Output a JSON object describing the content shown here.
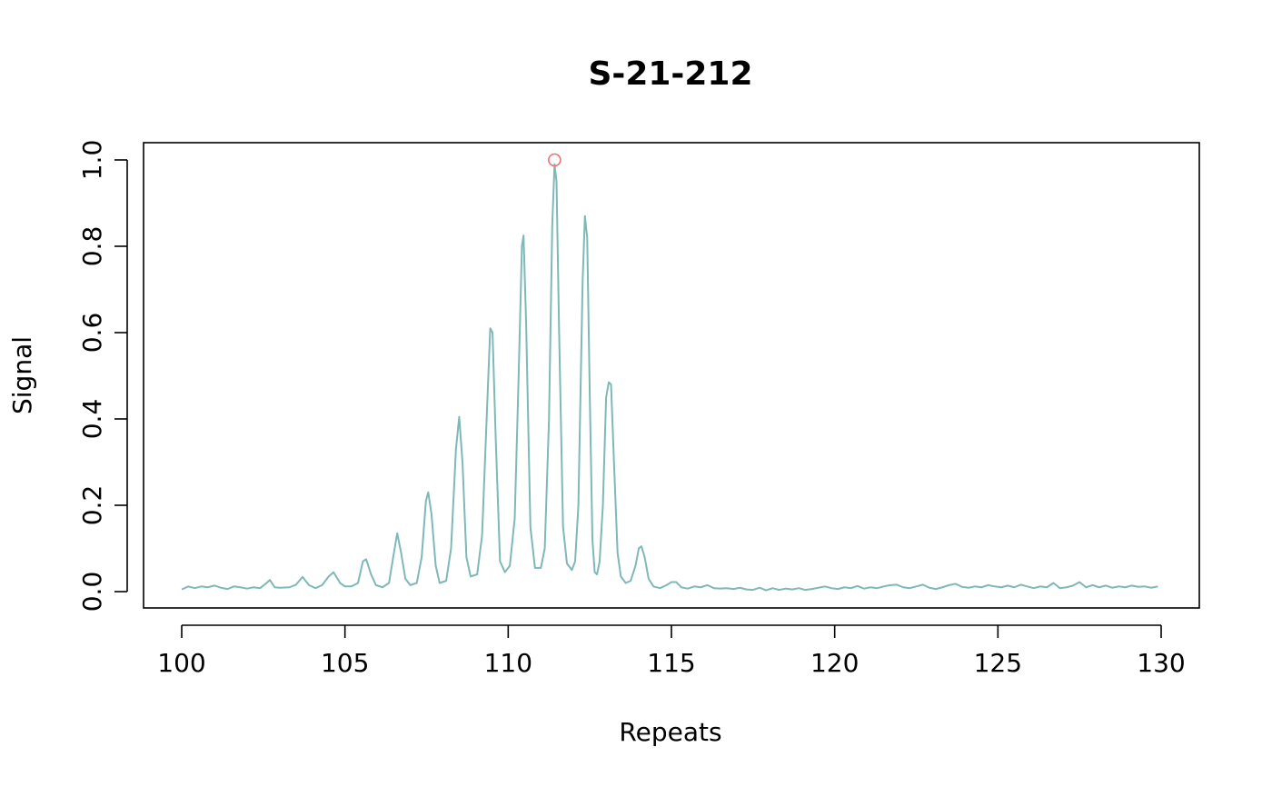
{
  "chart_data": {
    "type": "line",
    "title": "S-21-212",
    "xlabel": "Repeats",
    "ylabel": "Signal",
    "xlim": [
      100,
      130
    ],
    "ylim": [
      0,
      1.0
    ],
    "x_ticks": [
      "100",
      "105",
      "110",
      "115",
      "120",
      "125",
      "130"
    ],
    "y_ticks": [
      "0.0",
      "0.2",
      "0.4",
      "0.6",
      "0.8",
      "1.0"
    ],
    "grid": false,
    "legend": "none",
    "series_color": "#7fb8b8",
    "marker_color": "#f07070",
    "peaks": [
      {
        "x": 100.6,
        "y": 0.012
      },
      {
        "x": 101.6,
        "y": 0.012
      },
      {
        "x": 102.7,
        "y": 0.027
      },
      {
        "x": 103.7,
        "y": 0.034
      },
      {
        "x": 104.65,
        "y": 0.045
      },
      {
        "x": 105.65,
        "y": 0.075
      },
      {
        "x": 106.6,
        "y": 0.135
      },
      {
        "x": 107.55,
        "y": 0.23
      },
      {
        "x": 108.5,
        "y": 0.405
      },
      {
        "x": 109.5,
        "y": 0.61
      },
      {
        "x": 110.45,
        "y": 0.825
      },
      {
        "x": 111.42,
        "y": 0.99
      },
      {
        "x": 112.38,
        "y": 0.88
      },
      {
        "x": 113.1,
        "y": 0.485
      },
      {
        "x": 114.05,
        "y": 0.105
      }
    ],
    "highlight_point": {
      "x": 111.42,
      "y": 1.0
    },
    "points": [
      [
        100.0,
        0.005
      ],
      [
        100.2,
        0.012
      ],
      [
        100.4,
        0.008
      ],
      [
        100.6,
        0.012
      ],
      [
        100.8,
        0.01
      ],
      [
        101.0,
        0.014
      ],
      [
        101.2,
        0.009
      ],
      [
        101.4,
        0.006
      ],
      [
        101.6,
        0.012
      ],
      [
        101.8,
        0.01
      ],
      [
        102.0,
        0.007
      ],
      [
        102.2,
        0.01
      ],
      [
        102.4,
        0.008
      ],
      [
        102.6,
        0.02
      ],
      [
        102.7,
        0.027
      ],
      [
        102.85,
        0.01
      ],
      [
        103.0,
        0.009
      ],
      [
        103.3,
        0.01
      ],
      [
        103.5,
        0.016
      ],
      [
        103.7,
        0.034
      ],
      [
        103.9,
        0.015
      ],
      [
        104.1,
        0.008
      ],
      [
        104.3,
        0.015
      ],
      [
        104.5,
        0.035
      ],
      [
        104.65,
        0.045
      ],
      [
        104.85,
        0.02
      ],
      [
        105.0,
        0.012
      ],
      [
        105.2,
        0.012
      ],
      [
        105.4,
        0.02
      ],
      [
        105.55,
        0.07
      ],
      [
        105.65,
        0.075
      ],
      [
        105.8,
        0.04
      ],
      [
        105.95,
        0.015
      ],
      [
        106.15,
        0.01
      ],
      [
        106.35,
        0.02
      ],
      [
        106.5,
        0.09
      ],
      [
        106.6,
        0.135
      ],
      [
        106.72,
        0.09
      ],
      [
        106.85,
        0.03
      ],
      [
        107.0,
        0.015
      ],
      [
        107.2,
        0.02
      ],
      [
        107.35,
        0.08
      ],
      [
        107.48,
        0.21
      ],
      [
        107.55,
        0.23
      ],
      [
        107.65,
        0.18
      ],
      [
        107.78,
        0.06
      ],
      [
        107.9,
        0.02
      ],
      [
        108.1,
        0.025
      ],
      [
        108.25,
        0.1
      ],
      [
        108.4,
        0.33
      ],
      [
        108.5,
        0.405
      ],
      [
        108.6,
        0.3
      ],
      [
        108.72,
        0.08
      ],
      [
        108.85,
        0.035
      ],
      [
        109.05,
        0.04
      ],
      [
        109.2,
        0.13
      ],
      [
        109.35,
        0.42
      ],
      [
        109.45,
        0.61
      ],
      [
        109.52,
        0.6
      ],
      [
        109.62,
        0.35
      ],
      [
        109.75,
        0.07
      ],
      [
        109.9,
        0.045
      ],
      [
        110.05,
        0.06
      ],
      [
        110.2,
        0.17
      ],
      [
        110.32,
        0.5
      ],
      [
        110.42,
        0.8
      ],
      [
        110.47,
        0.825
      ],
      [
        110.55,
        0.62
      ],
      [
        110.68,
        0.15
      ],
      [
        110.82,
        0.055
      ],
      [
        111.0,
        0.055
      ],
      [
        111.12,
        0.1
      ],
      [
        111.25,
        0.4
      ],
      [
        111.35,
        0.85
      ],
      [
        111.42,
        0.99
      ],
      [
        111.48,
        0.95
      ],
      [
        111.56,
        0.6
      ],
      [
        111.68,
        0.15
      ],
      [
        111.8,
        0.065
      ],
      [
        111.95,
        0.05
      ],
      [
        112.05,
        0.07
      ],
      [
        112.15,
        0.2
      ],
      [
        112.28,
        0.72
      ],
      [
        112.35,
        0.87
      ],
      [
        112.42,
        0.82
      ],
      [
        112.5,
        0.45
      ],
      [
        112.58,
        0.12
      ],
      [
        112.65,
        0.045
      ],
      [
        112.72,
        0.04
      ],
      [
        112.8,
        0.07
      ],
      [
        112.9,
        0.2
      ],
      [
        113.0,
        0.45
      ],
      [
        113.08,
        0.485
      ],
      [
        113.15,
        0.48
      ],
      [
        113.25,
        0.28
      ],
      [
        113.35,
        0.09
      ],
      [
        113.45,
        0.035
      ],
      [
        113.6,
        0.02
      ],
      [
        113.75,
        0.025
      ],
      [
        113.9,
        0.06
      ],
      [
        114.0,
        0.1
      ],
      [
        114.08,
        0.105
      ],
      [
        114.18,
        0.08
      ],
      [
        114.3,
        0.03
      ],
      [
        114.45,
        0.012
      ],
      [
        114.65,
        0.008
      ],
      [
        114.85,
        0.015
      ],
      [
        115.0,
        0.022
      ],
      [
        115.15,
        0.022
      ],
      [
        115.3,
        0.01
      ],
      [
        115.5,
        0.007
      ],
      [
        115.7,
        0.012
      ],
      [
        115.9,
        0.01
      ],
      [
        116.1,
        0.015
      ],
      [
        116.3,
        0.008
      ],
      [
        116.5,
        0.007
      ],
      [
        116.7,
        0.008
      ],
      [
        116.9,
        0.006
      ],
      [
        117.1,
        0.009
      ],
      [
        117.3,
        0.005
      ],
      [
        117.5,
        0.004
      ],
      [
        117.7,
        0.009
      ],
      [
        117.9,
        0.003
      ],
      [
        118.1,
        0.008
      ],
      [
        118.3,
        0.004
      ],
      [
        118.5,
        0.007
      ],
      [
        118.7,
        0.005
      ],
      [
        118.9,
        0.008
      ],
      [
        119.1,
        0.004
      ],
      [
        119.3,
        0.006
      ],
      [
        119.5,
        0.009
      ],
      [
        119.7,
        0.012
      ],
      [
        119.9,
        0.008
      ],
      [
        120.1,
        0.006
      ],
      [
        120.3,
        0.01
      ],
      [
        120.5,
        0.008
      ],
      [
        120.7,
        0.013
      ],
      [
        120.9,
        0.007
      ],
      [
        121.1,
        0.01
      ],
      [
        121.3,
        0.008
      ],
      [
        121.5,
        0.012
      ],
      [
        121.7,
        0.015
      ],
      [
        121.9,
        0.016
      ],
      [
        122.1,
        0.01
      ],
      [
        122.3,
        0.008
      ],
      [
        122.5,
        0.012
      ],
      [
        122.7,
        0.016
      ],
      [
        122.9,
        0.009
      ],
      [
        123.1,
        0.006
      ],
      [
        123.3,
        0.01
      ],
      [
        123.5,
        0.015
      ],
      [
        123.7,
        0.018
      ],
      [
        123.9,
        0.011
      ],
      [
        124.1,
        0.009
      ],
      [
        124.3,
        0.012
      ],
      [
        124.5,
        0.01
      ],
      [
        124.7,
        0.015
      ],
      [
        124.9,
        0.012
      ],
      [
        125.1,
        0.01
      ],
      [
        125.3,
        0.014
      ],
      [
        125.5,
        0.01
      ],
      [
        125.7,
        0.016
      ],
      [
        125.9,
        0.012
      ],
      [
        126.1,
        0.008
      ],
      [
        126.3,
        0.012
      ],
      [
        126.5,
        0.01
      ],
      [
        126.7,
        0.02
      ],
      [
        126.9,
        0.008
      ],
      [
        127.1,
        0.01
      ],
      [
        127.3,
        0.014
      ],
      [
        127.5,
        0.022
      ],
      [
        127.7,
        0.01
      ],
      [
        127.9,
        0.015
      ],
      [
        128.1,
        0.01
      ],
      [
        128.3,
        0.014
      ],
      [
        128.5,
        0.009
      ],
      [
        128.7,
        0.012
      ],
      [
        128.9,
        0.01
      ],
      [
        129.1,
        0.014
      ],
      [
        129.3,
        0.011
      ],
      [
        129.5,
        0.012
      ],
      [
        129.7,
        0.009
      ],
      [
        129.9,
        0.012
      ]
    ]
  }
}
